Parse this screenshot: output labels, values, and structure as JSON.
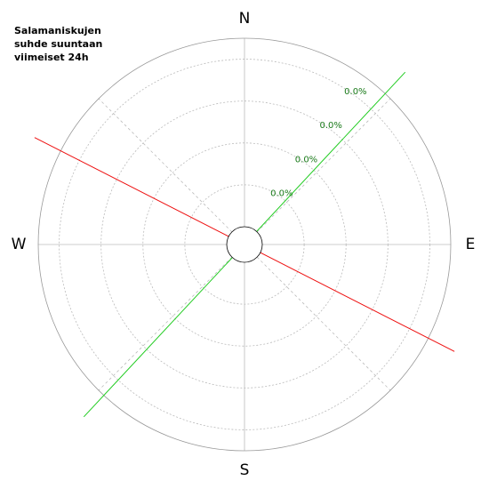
{
  "chart_data": {
    "type": "polar",
    "title": "Salamaniskujen\nsuhde suuntaan\nviimeiset 24h",
    "categories": [
      "N",
      "E",
      "S",
      "W"
    ],
    "spokes": [
      0,
      45,
      90,
      135,
      180,
      225,
      270,
      315
    ],
    "rlim": [
      0,
      0.045
    ],
    "rticks": [
      {
        "value": 0.01,
        "label": "0.0%"
      },
      {
        "value": 0.02,
        "label": "0.0%"
      },
      {
        "value": 0.03,
        "label": "0.0%"
      },
      {
        "value": 0.04,
        "label": "0.0%"
      }
    ],
    "tick_color": "#1a7a1a",
    "series": [
      {
        "color": "#22cc22",
        "angle": 43
      },
      {
        "color": "#ee1111",
        "angle": 117
      }
    ]
  }
}
